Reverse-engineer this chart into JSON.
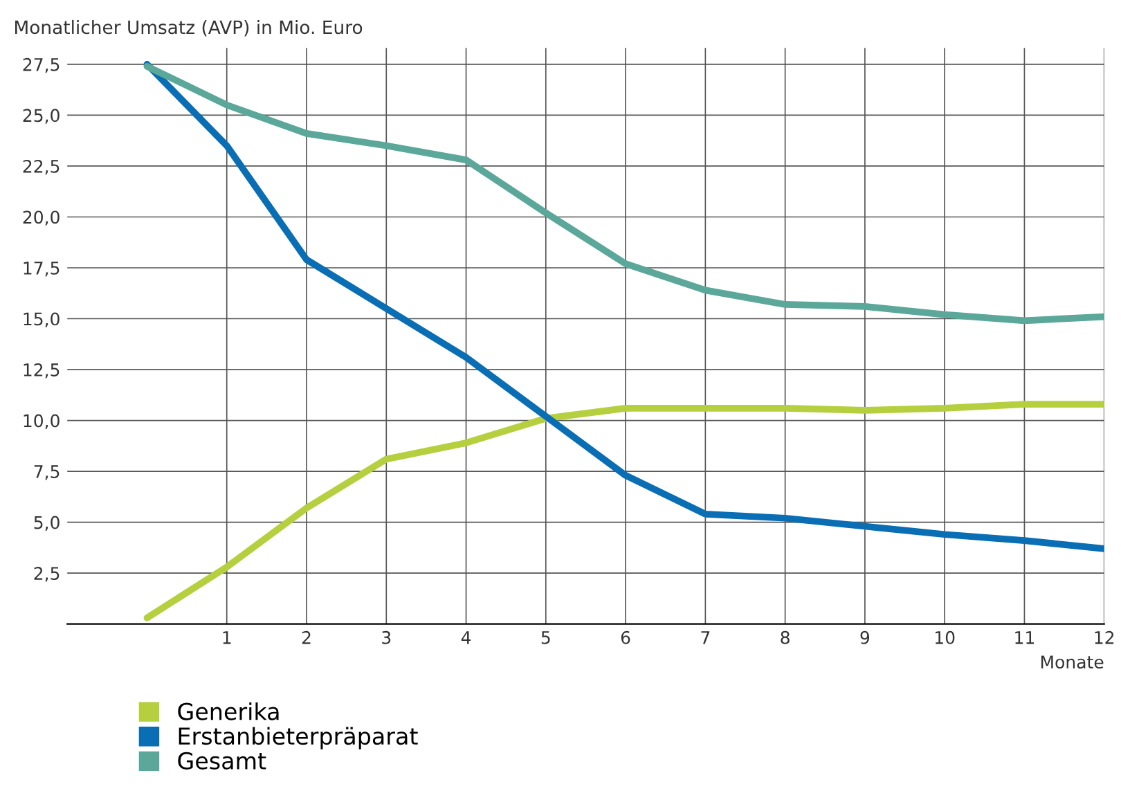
{
  "chart_data": {
    "type": "line",
    "ylabel": "Monatlicher Umsatz (AVP) in Mio. Euro",
    "xlabel": "Monate",
    "x": [
      0,
      1,
      2,
      3,
      4,
      5,
      6,
      7,
      8,
      9,
      10,
      11,
      12
    ],
    "series": [
      {
        "name": "Generika",
        "color": "#b5cf3e",
        "values": [
          0.3,
          2.8,
          5.7,
          8.1,
          8.9,
          10.1,
          10.6,
          10.6,
          10.6,
          10.5,
          10.6,
          10.8,
          10.8
        ]
      },
      {
        "name": "Erstanbieterpräparat",
        "color": "#0a6eb4",
        "values": [
          27.5,
          23.5,
          17.9,
          15.5,
          13.1,
          10.2,
          7.3,
          5.4,
          5.2,
          4.8,
          4.4,
          4.1,
          3.7
        ]
      },
      {
        "name": "Gesamt",
        "color": "#5ba89a",
        "values": [
          27.4,
          25.5,
          24.1,
          23.5,
          22.8,
          20.2,
          17.7,
          16.4,
          15.7,
          15.6,
          15.2,
          14.9,
          15.1
        ]
      }
    ],
    "xlim": [
      -1,
      12
    ],
    "xticks": [
      1,
      2,
      3,
      4,
      5,
      6,
      7,
      8,
      9,
      10,
      11,
      12
    ],
    "ylim": [
      0,
      28.3
    ],
    "yticks": [
      {
        "value": 2.5,
        "label": "2,5"
      },
      {
        "value": 5,
        "label": "5,0"
      },
      {
        "value": 7.5,
        "label": "7,5"
      },
      {
        "value": 10,
        "label": "10,0"
      },
      {
        "value": 12.5,
        "label": "12,5"
      },
      {
        "value": 15,
        "label": "15,0"
      },
      {
        "value": 17.5,
        "label": "17,5"
      },
      {
        "value": 20,
        "label": "20,0"
      },
      {
        "value": 22.5,
        "label": "22,5"
      },
      {
        "value": 25,
        "label": "25,0"
      },
      {
        "value": 27.5,
        "label": "27,5"
      }
    ],
    "grid": true,
    "legend": "bottom left",
    "marker": "none",
    "line_style": "solid"
  }
}
